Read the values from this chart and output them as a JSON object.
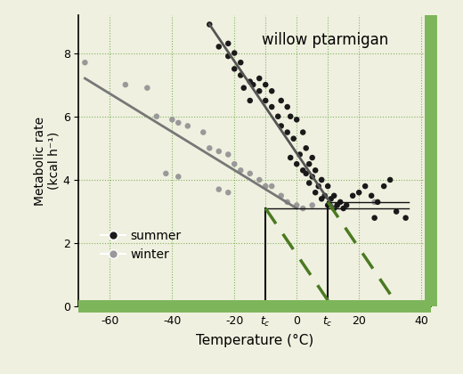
{
  "title": "willow ptarmigan",
  "xlabel": "Temperature (°C)",
  "ylabel": "Metabolic rate\n(kcal h⁻¹)",
  "xlim": [
    -70,
    43
  ],
  "ylim": [
    0,
    9.2
  ],
  "xticks": [
    -60,
    -40,
    -20,
    40
  ],
  "xticklabels": [
    "-60",
    "-40",
    "-20",
    "40"
  ],
  "yticks": [
    0,
    2,
    4,
    6,
    8
  ],
  "background_color": "#f0f0e0",
  "grid_color": "#7db55a",
  "summer_dots": [
    [
      -28,
      8.9
    ],
    [
      -25,
      8.2
    ],
    [
      -22,
      8.3
    ],
    [
      -20,
      8.0
    ],
    [
      -22,
      7.9
    ],
    [
      -18,
      7.7
    ],
    [
      -20,
      7.5
    ],
    [
      -18,
      7.3
    ],
    [
      -15,
      7.1
    ],
    [
      -17,
      6.9
    ],
    [
      -12,
      7.2
    ],
    [
      -14,
      7.0
    ],
    [
      -10,
      7.0
    ],
    [
      -12,
      6.8
    ],
    [
      -8,
      6.8
    ],
    [
      -15,
      6.5
    ],
    [
      -10,
      6.5
    ],
    [
      -5,
      6.5
    ],
    [
      -8,
      6.3
    ],
    [
      -3,
      6.3
    ],
    [
      -6,
      6.0
    ],
    [
      -2,
      6.0
    ],
    [
      0,
      5.9
    ],
    [
      -5,
      5.7
    ],
    [
      -3,
      5.5
    ],
    [
      2,
      5.5
    ],
    [
      -1,
      5.3
    ],
    [
      3,
      5.0
    ],
    [
      1,
      4.8
    ],
    [
      -2,
      4.7
    ],
    [
      5,
      4.7
    ],
    [
      0,
      4.5
    ],
    [
      4,
      4.5
    ],
    [
      2,
      4.3
    ],
    [
      6,
      4.3
    ],
    [
      3,
      4.2
    ],
    [
      5,
      4.1
    ],
    [
      8,
      4.0
    ],
    [
      4,
      3.9
    ],
    [
      7,
      3.8
    ],
    [
      10,
      3.8
    ],
    [
      6,
      3.6
    ],
    [
      9,
      3.5
    ],
    [
      12,
      3.5
    ],
    [
      8,
      3.4
    ],
    [
      11,
      3.4
    ],
    [
      14,
      3.3
    ],
    [
      10,
      3.2
    ],
    [
      13,
      3.2
    ],
    [
      16,
      3.2
    ],
    [
      12,
      3.1
    ],
    [
      15,
      3.1
    ],
    [
      18,
      3.5
    ],
    [
      20,
      3.6
    ],
    [
      22,
      3.8
    ],
    [
      24,
      3.5
    ],
    [
      26,
      3.3
    ],
    [
      28,
      3.8
    ],
    [
      30,
      4.0
    ],
    [
      25,
      2.8
    ],
    [
      32,
      3.0
    ],
    [
      35,
      2.8
    ]
  ],
  "winter_dots": [
    [
      -68,
      7.7
    ],
    [
      -55,
      7.0
    ],
    [
      -48,
      6.9
    ],
    [
      -45,
      6.0
    ],
    [
      -40,
      5.9
    ],
    [
      -38,
      5.8
    ],
    [
      -35,
      5.7
    ],
    [
      -42,
      4.2
    ],
    [
      -38,
      4.1
    ],
    [
      -30,
      5.5
    ],
    [
      -28,
      5.0
    ],
    [
      -25,
      4.9
    ],
    [
      -22,
      4.8
    ],
    [
      -20,
      4.5
    ],
    [
      -18,
      4.3
    ],
    [
      -25,
      3.7
    ],
    [
      -22,
      3.6
    ],
    [
      -15,
      4.2
    ],
    [
      -12,
      4.0
    ],
    [
      -10,
      3.8
    ],
    [
      -8,
      3.8
    ],
    [
      -5,
      3.5
    ],
    [
      -3,
      3.3
    ],
    [
      0,
      3.2
    ],
    [
      2,
      3.1
    ],
    [
      5,
      3.2
    ],
    [
      8,
      4.0
    ],
    [
      25,
      3.3
    ]
  ],
  "winter_line_x": [
    -68,
    0
  ],
  "winter_line_y": [
    7.2,
    3.1
  ],
  "summer_line_x": [
    -28,
    12
  ],
  "summer_line_y": [
    8.9,
    3.1
  ],
  "tc_winter": -10,
  "tc_summer": 10,
  "bmr_winter": 3.1,
  "bmr_summer": 3.3,
  "dashed_color": "#4a7a20",
  "vline_color": "#111111",
  "hline_color": "#111111",
  "right_border_color": "#7db55a",
  "bottom_border_color": "#7db55a",
  "dot_color_summer": "#1a1a1a",
  "dot_color_winter": "#999999",
  "line_color_winter": "#777777",
  "line_color_summer": "#555555"
}
